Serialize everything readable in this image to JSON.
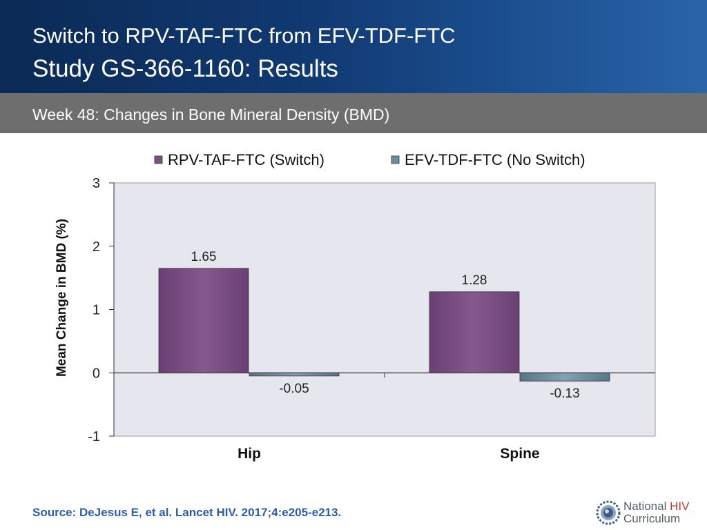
{
  "header": {
    "title_line1": "Switch to RPV-TAF-FTC from EFV-TDF-FTC",
    "title_line2": "Study GS-366-1160: Results"
  },
  "subheader": {
    "text": "Week 48: Changes in Bone Mineral Density (BMD)"
  },
  "colors": {
    "series1": "#7b4f82",
    "series2": "#6a8f9c",
    "header_dark": "#0b2a55",
    "source_text": "#2d5da7"
  },
  "chart_data": {
    "type": "bar",
    "title": "",
    "xlabel": "",
    "ylabel": "Mean Change in BMD (%)",
    "categories": [
      "Hip",
      "Spine"
    ],
    "series": [
      {
        "name": "RPV-TAF-FTC (Switch)",
        "values": [
          1.65,
          1.28
        ],
        "labels": [
          "1.65",
          "1.28"
        ]
      },
      {
        "name": "EFV-TDF-FTC (No Switch)",
        "values": [
          -0.05,
          -0.13
        ],
        "labels": [
          "-0.05",
          "-0.13"
        ]
      }
    ],
    "ylim": [
      -1,
      3
    ],
    "yticks": [
      -1,
      0,
      1,
      2,
      3
    ],
    "ytick_labels": [
      "-1",
      "0",
      "1",
      "2",
      "3"
    ],
    "legend": "top",
    "grid": false
  },
  "footer": {
    "source": "Source: DeJesus E, et al. Lancet HIV. 2017;4:e205-e213.",
    "logo_line1_a": "National",
    "logo_line1_b": "HIV",
    "logo_line2": "Curriculum",
    "logo_icon": "gear-globe-icon"
  }
}
